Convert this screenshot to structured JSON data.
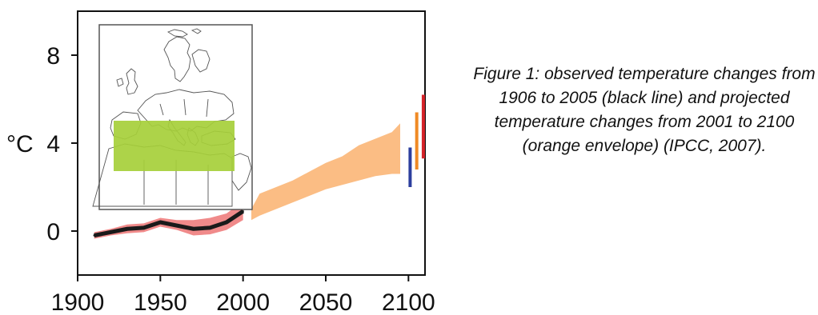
{
  "chart_data": {
    "type": "line",
    "title": "",
    "xlabel": "",
    "ylabel": "°C",
    "xlim": [
      1900,
      2110
    ],
    "ylim": [
      -2,
      10
    ],
    "x_ticks": [
      1900,
      1950,
      2000,
      2050,
      2100
    ],
    "y_ticks": [
      0,
      4,
      8
    ],
    "grid": false,
    "series": [
      {
        "kind": "line",
        "color": "#1a1a1a",
        "x": [
          1910,
          1920,
          1930,
          1940,
          1950,
          1960,
          1970,
          1980,
          1990,
          2000
        ],
        "y": [
          -0.2,
          -0.05,
          0.1,
          0.15,
          0.4,
          0.25,
          0.1,
          0.15,
          0.4,
          0.9
        ]
      },
      {
        "kind": "band",
        "color": "#f08a8a",
        "x": [
          1910,
          1920,
          1930,
          1940,
          1950,
          1960,
          1970,
          1980,
          1990,
          2000
        ],
        "lower": [
          -0.35,
          -0.2,
          -0.1,
          -0.05,
          0.2,
          0.05,
          -0.2,
          -0.15,
          0.05,
          0.5
        ],
        "upper": [
          -0.05,
          0.1,
          0.3,
          0.35,
          0.6,
          0.5,
          0.5,
          0.6,
          0.8,
          1.35
        ]
      },
      {
        "kind": "band",
        "color": "#fbbd84",
        "x": [
          2005,
          2010,
          2020,
          2030,
          2040,
          2050,
          2060,
          2070,
          2080,
          2090,
          2095
        ],
        "lower": [
          0.5,
          0.7,
          1.0,
          1.3,
          1.6,
          1.9,
          2.1,
          2.3,
          2.5,
          2.6,
          2.6
        ],
        "upper": [
          1.0,
          1.7,
          2.0,
          2.3,
          2.7,
          3.1,
          3.4,
          3.9,
          4.2,
          4.5,
          4.9
        ]
      }
    ],
    "range_bars": [
      {
        "x": 2101,
        "low": 2.0,
        "high": 3.8,
        "color": "#2d3f9e"
      },
      {
        "x": 2105,
        "low": 2.8,
        "high": 5.4,
        "color": "#f08a24"
      },
      {
        "x": 2109,
        "low": 3.3,
        "high": 6.2,
        "color": "#d6242a"
      }
    ],
    "inset_map": {
      "region_color": "#a6cf3a",
      "description_icon": "europe-mediterranean-map-icon"
    }
  },
  "caption": "Figure 1: observed temperature changes from 1906 to 2005 (black line) and projected temperature changes from 2001 to 2100 (orange envelope) (IPCC, 2007)."
}
